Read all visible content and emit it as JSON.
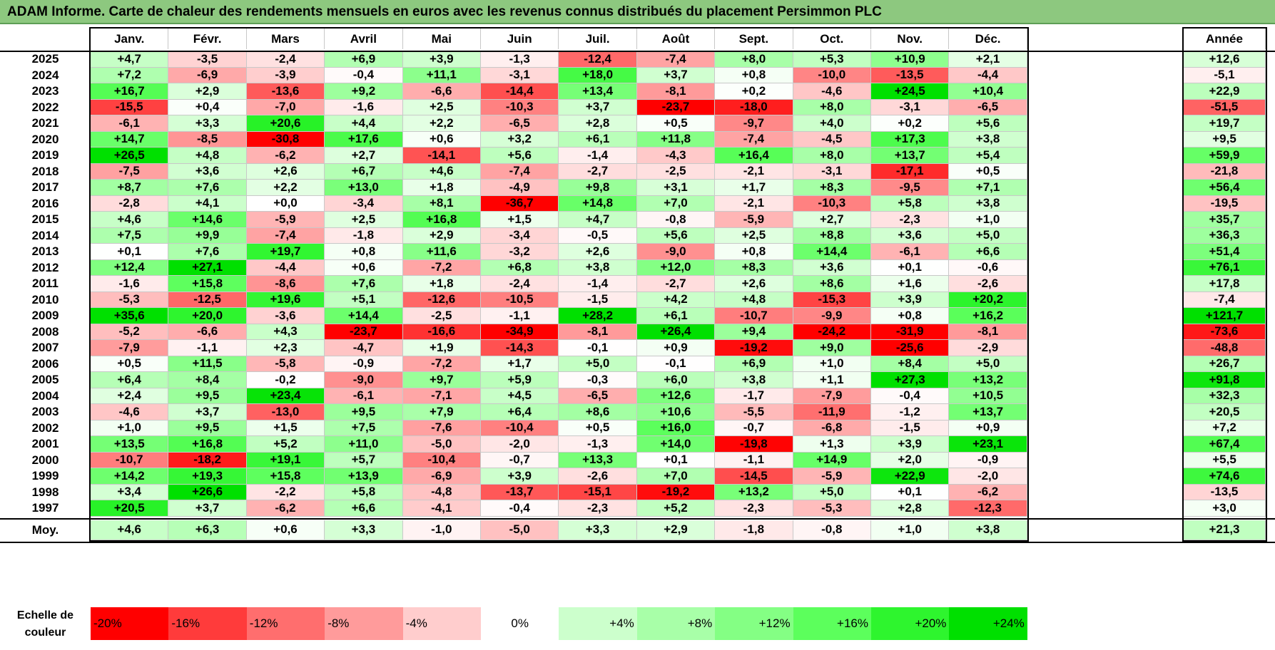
{
  "title": "ADAM Informe. Carte de chaleur des rendements mensuels en euros avec les revenus connus distribués du placement Persimmon PLC",
  "chart_data": {
    "type": "heatmap",
    "title": "ADAM Informe. Carte de chaleur des rendements mensuels en euros avec les revenus connus distribués du placement Persimmon PLC",
    "months": [
      "Janv.",
      "Févr.",
      "Mars",
      "Avril",
      "Mai",
      "Juin",
      "Juil.",
      "Août",
      "Sept.",
      "Oct.",
      "Nov.",
      "Déc."
    ],
    "year_header": "Année",
    "rows": [
      {
        "year": "2025",
        "values": [
          4.7,
          -3.5,
          -2.4,
          6.9,
          3.9,
          -1.3,
          -12.4,
          -7.4,
          8.0,
          5.3,
          10.9,
          2.1
        ],
        "annual": 12.6
      },
      {
        "year": "2024",
        "values": [
          7.2,
          -6.9,
          -3.9,
          -0.4,
          11.1,
          -3.1,
          18.0,
          3.7,
          0.8,
          -10.0,
          -13.5,
          -4.4
        ],
        "annual": -5.1
      },
      {
        "year": "2023",
        "values": [
          16.7,
          2.9,
          -13.6,
          9.2,
          -6.6,
          -14.4,
          13.4,
          -8.1,
          0.2,
          -4.6,
          24.5,
          10.4
        ],
        "annual": 22.9
      },
      {
        "year": "2022",
        "values": [
          -15.5,
          0.4,
          -7.0,
          -1.6,
          2.5,
          -10.3,
          3.7,
          -23.7,
          -18.0,
          8.0,
          -3.1,
          -6.5
        ],
        "annual": -51.5
      },
      {
        "year": "2021",
        "values": [
          -6.1,
          3.3,
          20.6,
          4.4,
          2.2,
          -6.5,
          2.8,
          0.5,
          -9.7,
          4.0,
          0.2,
          5.6
        ],
        "annual": 19.7
      },
      {
        "year": "2020",
        "values": [
          14.7,
          -8.5,
          -30.8,
          17.6,
          0.6,
          3.2,
          6.1,
          11.8,
          -7.4,
          -4.5,
          17.3,
          3.8
        ],
        "annual": 9.5
      },
      {
        "year": "2019",
        "values": [
          26.5,
          4.8,
          -6.2,
          2.7,
          -14.1,
          5.6,
          -1.4,
          -4.3,
          16.4,
          8.0,
          13.7,
          5.4
        ],
        "annual": 59.9
      },
      {
        "year": "2018",
        "values": [
          -7.5,
          3.6,
          2.6,
          6.7,
          4.6,
          -7.4,
          -2.7,
          -2.5,
          -2.1,
          -3.1,
          -17.1,
          0.5
        ],
        "annual": -21.8
      },
      {
        "year": "2017",
        "values": [
          8.7,
          7.6,
          2.2,
          13.0,
          1.8,
          -4.9,
          9.8,
          3.1,
          1.7,
          8.3,
          -9.5,
          7.1
        ],
        "annual": 56.4
      },
      {
        "year": "2016",
        "values": [
          -2.8,
          4.1,
          0.0,
          -3.4,
          8.1,
          -36.7,
          14.8,
          7.0,
          -2.1,
          -10.3,
          5.8,
          3.8
        ],
        "annual": -19.5
      },
      {
        "year": "2015",
        "values": [
          4.6,
          14.6,
          -5.9,
          2.5,
          16.8,
          1.5,
          4.7,
          -0.8,
          -5.9,
          2.7,
          -2.3,
          1.0
        ],
        "annual": 35.7
      },
      {
        "year": "2014",
        "values": [
          7.5,
          9.9,
          -7.4,
          -1.8,
          2.9,
          -3.4,
          -0.5,
          5.6,
          2.5,
          8.8,
          3.6,
          5.0
        ],
        "annual": 36.3
      },
      {
        "year": "2013",
        "values": [
          0.1,
          7.6,
          19.7,
          0.8,
          11.6,
          -3.2,
          2.6,
          -9.0,
          0.8,
          14.4,
          -6.1,
          6.6
        ],
        "annual": 51.4
      },
      {
        "year": "2012",
        "values": [
          12.4,
          27.1,
          -4.4,
          0.6,
          -7.2,
          6.8,
          3.8,
          12.0,
          8.3,
          3.6,
          0.1,
          -0.6
        ],
        "annual": 76.1
      },
      {
        "year": "2011",
        "values": [
          -1.6,
          15.8,
          -8.6,
          7.6,
          1.8,
          -2.4,
          -1.4,
          -2.7,
          2.6,
          8.6,
          1.6,
          -2.6
        ],
        "annual": 17.8
      },
      {
        "year": "2010",
        "values": [
          -5.3,
          -12.5,
          19.6,
          5.1,
          -12.6,
          -10.5,
          -1.5,
          4.2,
          4.8,
          -15.3,
          3.9,
          20.2
        ],
        "annual": -7.4
      },
      {
        "year": "2009",
        "values": [
          35.6,
          20.0,
          -3.6,
          14.4,
          -2.5,
          -1.1,
          28.2,
          6.1,
          -10.7,
          -9.9,
          0.8,
          16.2
        ],
        "annual": 121.7
      },
      {
        "year": "2008",
        "values": [
          -5.2,
          -6.6,
          4.3,
          -23.7,
          -16.6,
          -34.9,
          -8.1,
          26.4,
          9.4,
          -24.2,
          -31.9,
          -8.1
        ],
        "annual": -73.6
      },
      {
        "year": "2007",
        "values": [
          -7.9,
          -1.1,
          2.3,
          -4.7,
          1.9,
          -14.3,
          -0.1,
          0.9,
          -19.2,
          9.0,
          -25.6,
          -2.9
        ],
        "annual": -48.8
      },
      {
        "year": "2006",
        "values": [
          0.5,
          11.5,
          -5.8,
          -0.9,
          -7.2,
          1.7,
          5.0,
          -0.1,
          6.9,
          1.0,
          8.4,
          5.0
        ],
        "annual": 26.7
      },
      {
        "year": "2005",
        "values": [
          6.4,
          8.4,
          -0.2,
          -9.0,
          9.7,
          5.9,
          -0.3,
          6.0,
          3.8,
          1.1,
          27.3,
          13.2
        ],
        "annual": 91.8
      },
      {
        "year": "2004",
        "values": [
          2.4,
          9.5,
          23.4,
          -6.1,
          -7.1,
          4.5,
          -6.5,
          12.6,
          -1.7,
          -7.9,
          -0.4,
          10.5
        ],
        "annual": 32.3
      },
      {
        "year": "2003",
        "values": [
          -4.6,
          3.7,
          -13.0,
          9.5,
          7.9,
          6.4,
          8.6,
          10.6,
          -5.5,
          -11.9,
          -1.2,
          13.7
        ],
        "annual": 20.5
      },
      {
        "year": "2002",
        "values": [
          1.0,
          9.5,
          1.5,
          7.5,
          -7.6,
          -10.4,
          0.5,
          16.0,
          -0.7,
          -6.8,
          -1.5,
          0.9
        ],
        "annual": 7.2
      },
      {
        "year": "2001",
        "values": [
          13.5,
          16.8,
          5.2,
          11.0,
          -5.0,
          -2.0,
          -1.3,
          14.0,
          -19.8,
          1.3,
          3.9,
          23.1
        ],
        "annual": 67.4
      },
      {
        "year": "2000",
        "values": [
          -10.7,
          -18.2,
          19.1,
          5.7,
          -10.4,
          -0.7,
          13.3,
          0.1,
          -1.1,
          14.9,
          2.0,
          -0.9
        ],
        "annual": 5.5
      },
      {
        "year": "1999",
        "values": [
          14.2,
          19.3,
          15.8,
          13.9,
          -6.9,
          3.9,
          -2.6,
          7.0,
          -14.5,
          -5.9,
          22.9,
          -2.0
        ],
        "annual": 74.6
      },
      {
        "year": "1998",
        "values": [
          3.4,
          26.6,
          -2.2,
          5.8,
          -4.8,
          -13.7,
          -15.1,
          -19.2,
          13.2,
          5.0,
          0.1,
          -6.2
        ],
        "annual": -13.5
      },
      {
        "year": "1997",
        "values": [
          20.5,
          3.7,
          -6.2,
          6.6,
          -4.1,
          -0.4,
          -2.3,
          5.2,
          -2.3,
          -5.3,
          2.8,
          -12.3
        ],
        "annual": 3.0
      }
    ],
    "average": {
      "label": "Moy.",
      "values": [
        4.6,
        6.3,
        0.6,
        3.3,
        -1.0,
        -5.0,
        3.3,
        2.9,
        -1.8,
        -0.8,
        1.0,
        3.8
      ],
      "annual": 21.3
    },
    "scale_label": "Echelle de couleur",
    "scale": [
      {
        "label": "-20%",
        "value": -20,
        "color": "#ff0000"
      },
      {
        "label": "-16%",
        "value": -16,
        "color": "#ff3b3b"
      },
      {
        "label": "-12%",
        "value": -12,
        "color": "#ff6e6e"
      },
      {
        "label": "-8%",
        "value": -8,
        "color": "#ff9b9b"
      },
      {
        "label": "-4%",
        "value": -4,
        "color": "#ffcdcd"
      },
      {
        "label": "0%",
        "value": 0,
        "color": "#ffffff"
      },
      {
        "label": "+4%",
        "value": 4,
        "color": "#ccffcc"
      },
      {
        "label": "+8%",
        "value": 8,
        "color": "#a8ffa8"
      },
      {
        "label": "+12%",
        "value": 12,
        "color": "#84ff84"
      },
      {
        "label": "+16%",
        "value": 16,
        "color": "#5cff5c"
      },
      {
        "label": "+20%",
        "value": 20,
        "color": "#2ef52e"
      },
      {
        "label": "+24%",
        "value": 24,
        "color": "#00e000"
      }
    ]
  }
}
